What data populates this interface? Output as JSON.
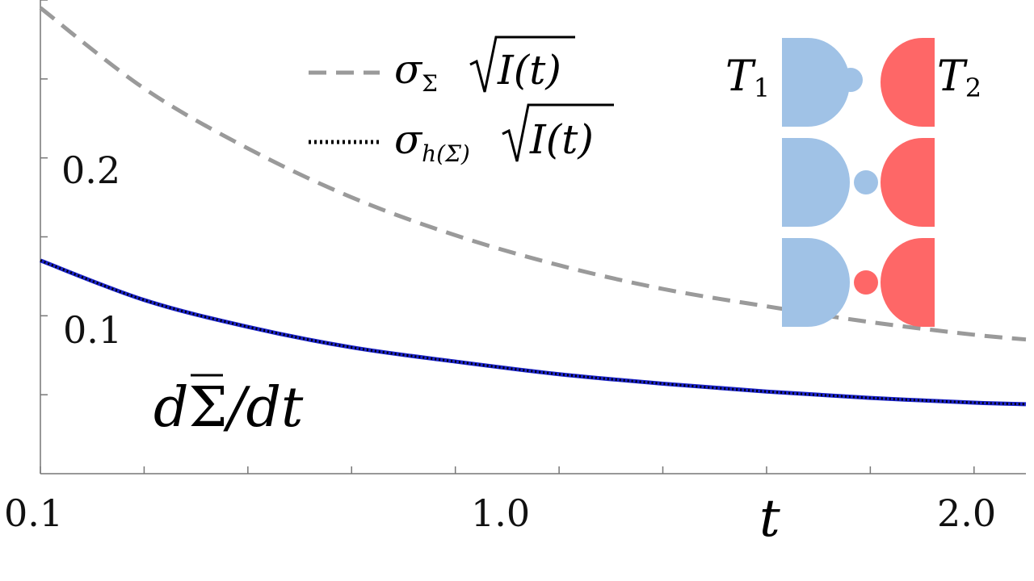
{
  "chart_data": {
    "type": "line",
    "title": "",
    "xlabel": "t",
    "ylabel": "dΣ̄/dt",
    "x_tick_labels": [
      "0.1",
      "1.0",
      "2.0"
    ],
    "y_tick_labels": [
      "0.1",
      "0.2"
    ],
    "xlim": [
      0.1,
      2.0
    ],
    "ylim": [
      0.0,
      0.3
    ],
    "grid": false,
    "legend_position": "top-center",
    "x": [
      0.1,
      0.3,
      0.5,
      0.7,
      0.9,
      1.1,
      1.3,
      1.5,
      1.7,
      1.9,
      2.0
    ],
    "series": [
      {
        "name": "σΣ √I(t)",
        "style": "dashed",
        "color": "#9a9a9a",
        "values": [
          0.295,
          0.244,
          0.206,
          0.175,
          0.151,
          0.132,
          0.117,
          0.106,
          0.096,
          0.088,
          0.085
        ]
      },
      {
        "name": "σh(Σ) √I(t)",
        "style": "dotted-over-solid",
        "color": "#1a22c8",
        "values": [
          0.135,
          0.11,
          0.093,
          0.08,
          0.071,
          0.063,
          0.057,
          0.052,
          0.048,
          0.045,
          0.044
        ]
      }
    ]
  },
  "legend": {
    "entry1": {
      "sigma": "σ",
      "sub": "Σ",
      "arg": "I(t)"
    },
    "entry2": {
      "sigma": "σ",
      "sub": "h(Σ)",
      "arg": "I(t)"
    }
  },
  "inset": {
    "label_left": "T",
    "label_left_sub": "1",
    "label_right": "T",
    "label_right_sub": "2",
    "left_color": "#a0c2e6",
    "right_color": "#fe6767",
    "rows": [
      {
        "dot_color": "#a0c2e6",
        "dot_position": "near-left"
      },
      {
        "dot_color": "#a0c2e6",
        "dot_position": "near-right"
      },
      {
        "dot_color": "#fe6767",
        "dot_position": "near-right"
      }
    ]
  },
  "y_axis_title": {
    "d1": "d",
    "sigma": "Σ",
    "rest": "/dt"
  },
  "x_axis_title": "t"
}
